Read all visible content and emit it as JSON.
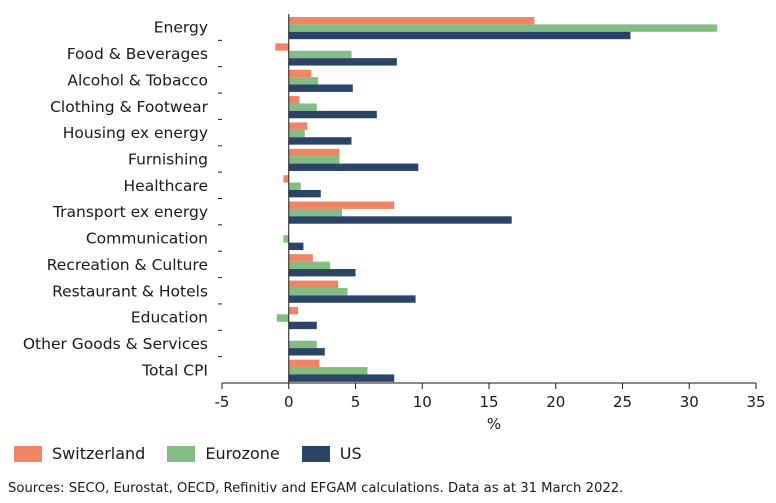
{
  "chart_data": {
    "type": "bar",
    "orientation": "horizontal",
    "categories": [
      "Energy",
      "Food & Beverages",
      "Alcohol & Tobacco",
      "Clothing & Footwear",
      "Housing ex energy",
      "Furnishing",
      "Healthcare",
      "Transport ex energy",
      "Communication",
      "Recreation & Culture",
      "Restaurant & Hotels",
      "Education",
      "Other Goods & Services",
      "Total CPI"
    ],
    "series": [
      {
        "name": "Switzerland",
        "color": "#f08566",
        "values": [
          18.4,
          -1.0,
          1.7,
          0.8,
          1.4,
          3.8,
          -0.4,
          7.9,
          0.0,
          1.8,
          3.7,
          0.7,
          0.0,
          2.3
        ]
      },
      {
        "name": "Eurozone",
        "color": "#83bd84",
        "values": [
          32.1,
          4.7,
          2.2,
          2.1,
          1.2,
          3.8,
          0.9,
          4.0,
          -0.4,
          3.1,
          4.4,
          -0.9,
          2.1,
          5.9
        ]
      },
      {
        "name": "US",
        "color": "#2b4466",
        "values": [
          25.6,
          8.1,
          4.8,
          6.6,
          4.7,
          9.7,
          2.4,
          16.7,
          1.1,
          5.0,
          9.5,
          2.1,
          2.7,
          7.9
        ]
      }
    ],
    "xlim": [
      -5,
      35
    ],
    "xticks": [
      "-5",
      "0",
      "5",
      "10",
      "15",
      "20",
      "25",
      "30",
      "35"
    ],
    "xlabel": "%",
    "grid": false,
    "legend_position": "bottom-left"
  },
  "legend": {
    "items": [
      {
        "label": "Switzerland",
        "color": "#f08566"
      },
      {
        "label": "Eurozone",
        "color": "#83bd84"
      },
      {
        "label": "US",
        "color": "#2b4466"
      }
    ]
  },
  "source_note": "Sources: SECO, Eurostat, OECD, Refinitiv and EFGAM calculations. Data as at 31 March 2022."
}
